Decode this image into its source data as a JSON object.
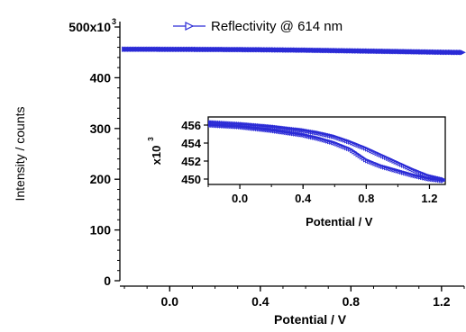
{
  "chart_data": [
    {
      "id": "main",
      "type": "scatter",
      "xlabel": "Potential / V",
      "ylabel": "Intensity / counts",
      "xlim": [
        -0.22,
        1.3
      ],
      "ylim": [
        0,
        500000
      ],
      "x_ticks": [
        0.0,
        0.4,
        0.8,
        1.2
      ],
      "x_tick_labels": [
        "0.0",
        "0.4",
        "0.8",
        "1.2"
      ],
      "y_ticks": [
        0,
        100000,
        200000,
        300000,
        400000,
        500000
      ],
      "y_tick_labels": [
        "0",
        "100",
        "200",
        "300",
        "400",
        "500x10"
      ],
      "y_exponent_label": "3",
      "grid": false,
      "legend": {
        "placement": "top-center",
        "entries": [
          "Reflectivity @ 614 nm"
        ]
      },
      "series": [
        {
          "name": "Reflectivity @ 614 nm",
          "color": "#2b2bd6",
          "marker": "open-triangle-right",
          "x": [
            -0.2,
            0.0,
            0.2,
            0.4,
            0.6,
            0.8,
            1.0,
            1.2,
            1.3
          ],
          "y": [
            456200,
            456000,
            455700,
            455200,
            454300,
            453000,
            451700,
            450300,
            449800
          ]
        }
      ]
    },
    {
      "id": "inset",
      "type": "scatter",
      "xlabel": "Potential / V",
      "ylabel": "x10",
      "ylabel_exponent": "3",
      "xlim": [
        -0.2,
        1.3
      ],
      "ylim": [
        449.4,
        456.9
      ],
      "x_ticks": [
        0.0,
        0.4,
        0.8,
        1.2
      ],
      "x_tick_labels": [
        "0.0",
        "0.4",
        "0.8",
        "1.2"
      ],
      "y_ticks": [
        450,
        452,
        454,
        456
      ],
      "y_tick_labels": [
        "450",
        "452",
        "454",
        "456"
      ],
      "grid": false,
      "series": [
        {
          "name": "",
          "color": "#2b2bd6",
          "x": [
            -0.2,
            0.0,
            0.2,
            0.4,
            0.5,
            0.6,
            0.7,
            0.8,
            0.9,
            1.0,
            1.1,
            1.2,
            1.3
          ],
          "y": [
            456.3,
            456.1,
            455.8,
            455.4,
            455.1,
            454.7,
            454.1,
            453.4,
            452.6,
            451.8,
            451.0,
            450.3,
            449.9
          ]
        },
        {
          "name": "",
          "color": "#2b2bd6",
          "x": [
            1.3,
            1.2,
            1.1,
            1.0,
            0.9,
            0.8,
            0.75,
            0.7,
            0.6,
            0.5,
            0.4,
            0.2,
            0.0,
            -0.2
          ],
          "y": [
            449.8,
            450.0,
            450.4,
            450.9,
            451.4,
            452.1,
            452.7,
            453.3,
            454.0,
            454.5,
            454.9,
            455.4,
            455.8,
            456.0
          ]
        }
      ]
    }
  ]
}
